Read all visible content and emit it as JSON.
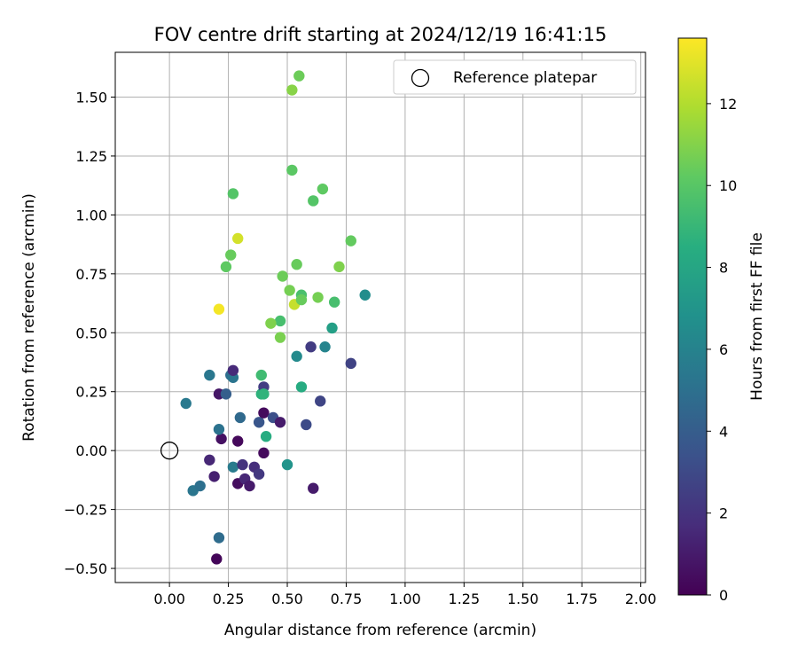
{
  "chart_data": {
    "type": "scatter",
    "title": "FOV centre drift starting at 2024/12/19 16:41:15",
    "xlabel": "Angular distance from reference (arcmin)",
    "ylabel": "Rotation from reference (arcmin)",
    "xlim": [
      -0.23,
      2.02
    ],
    "ylim": [
      -0.56,
      1.69
    ],
    "xticks": [
      0.0,
      0.25,
      0.5,
      0.75,
      1.0,
      1.25,
      1.5,
      1.75,
      2.0
    ],
    "xtick_labels": [
      "0.00",
      "0.25",
      "0.50",
      "0.75",
      "1.00",
      "1.25",
      "1.50",
      "1.75",
      "2.00"
    ],
    "yticks": [
      -0.5,
      -0.25,
      0.0,
      0.25,
      0.5,
      0.75,
      1.0,
      1.25,
      1.5
    ],
    "ytick_labels": [
      "−0.50",
      "−0.25",
      "0.00",
      "0.25",
      "0.50",
      "0.75",
      "1.00",
      "1.25",
      "1.50"
    ],
    "grid": true,
    "legend": {
      "placement": "top-right",
      "entries": [
        "Reference platepar"
      ]
    },
    "reference_point": {
      "x": 0.0,
      "y": 0.0,
      "label": "Reference platepar"
    },
    "colorbar": {
      "label": "Hours from first FF file",
      "colormap": "viridis",
      "range": [
        0,
        13.6
      ],
      "ticks": [
        0,
        2,
        4,
        6,
        8,
        10,
        12
      ],
      "tick_labels": [
        "0",
        "2",
        "4",
        "6",
        "8",
        "10",
        "12"
      ]
    },
    "point_fields": [
      "x",
      "y",
      "hours"
    ],
    "points": [
      [
        0.2,
        -0.46,
        0.2
      ],
      [
        0.21,
        -0.37,
        4.8
      ],
      [
        0.1,
        -0.17,
        5.3
      ],
      [
        0.13,
        -0.15,
        5.0
      ],
      [
        0.19,
        -0.11,
        1.2
      ],
      [
        0.17,
        -0.04,
        1.5
      ],
      [
        0.27,
        -0.07,
        5.6
      ],
      [
        0.29,
        -0.14,
        0.5
      ],
      [
        0.32,
        -0.12,
        1.5
      ],
      [
        0.31,
        -0.06,
        2.0
      ],
      [
        0.34,
        -0.15,
        1.0
      ],
      [
        0.36,
        -0.07,
        1.8
      ],
      [
        0.38,
        -0.1,
        2.2
      ],
      [
        0.4,
        -0.01,
        0.4
      ],
      [
        0.29,
        0.04,
        0.3
      ],
      [
        0.22,
        0.05,
        0.6
      ],
      [
        0.21,
        0.09,
        5.1
      ],
      [
        0.3,
        0.14,
        4.6
      ],
      [
        0.38,
        0.12,
        3.6
      ],
      [
        0.4,
        0.16,
        0.4
      ],
      [
        0.44,
        0.14,
        3.3
      ],
      [
        0.47,
        0.12,
        1.0
      ],
      [
        0.41,
        0.06,
        8.4
      ],
      [
        0.58,
        0.11,
        3.1
      ],
      [
        0.5,
        -0.06,
        7.0
      ],
      [
        0.61,
        -0.16,
        1.0
      ],
      [
        0.64,
        0.21,
        2.8
      ],
      [
        0.07,
        0.2,
        5.5
      ],
      [
        0.17,
        0.32,
        5.4
      ],
      [
        0.21,
        0.24,
        0.8
      ],
      [
        0.24,
        0.24,
        4.1
      ],
      [
        0.26,
        0.32,
        4.9
      ],
      [
        0.27,
        0.31,
        5.2
      ],
      [
        0.27,
        0.34,
        1.6
      ],
      [
        0.39,
        0.24,
        8.7
      ],
      [
        0.4,
        0.27,
        2.4
      ],
      [
        0.4,
        0.24,
        8.8
      ],
      [
        0.39,
        0.32,
        9.3
      ],
      [
        0.56,
        0.27,
        8.3
      ],
      [
        0.54,
        0.4,
        6.4
      ],
      [
        0.6,
        0.44,
        2.4
      ],
      [
        0.66,
        0.44,
        6.1
      ],
      [
        0.77,
        0.37,
        2.7
      ],
      [
        0.69,
        0.52,
        7.6
      ],
      [
        0.47,
        0.55,
        9.5
      ],
      [
        0.47,
        0.48,
        10.8
      ],
      [
        0.43,
        0.54,
        10.9
      ],
      [
        0.51,
        0.68,
        10.7
      ],
      [
        0.53,
        0.62,
        12.4
      ],
      [
        0.56,
        0.66,
        9.6
      ],
      [
        0.56,
        0.64,
        10.4
      ],
      [
        0.63,
        0.65,
        10.7
      ],
      [
        0.7,
        0.63,
        9.5
      ],
      [
        0.83,
        0.66,
        6.6
      ],
      [
        0.48,
        0.74,
        10.5
      ],
      [
        0.54,
        0.79,
        10.4
      ],
      [
        0.72,
        0.78,
        10.9
      ],
      [
        0.77,
        0.89,
        10.3
      ],
      [
        0.26,
        0.83,
        10.4
      ],
      [
        0.24,
        0.78,
        10.2
      ],
      [
        0.29,
        0.9,
        12.7
      ],
      [
        0.21,
        0.6,
        13.4
      ],
      [
        0.27,
        1.09,
        9.9
      ],
      [
        0.52,
        1.19,
        10.1
      ],
      [
        0.61,
        1.06,
        9.9
      ],
      [
        0.65,
        1.11,
        10.2
      ],
      [
        0.52,
        1.53,
        11.1
      ],
      [
        0.55,
        1.59,
        10.5
      ]
    ]
  }
}
